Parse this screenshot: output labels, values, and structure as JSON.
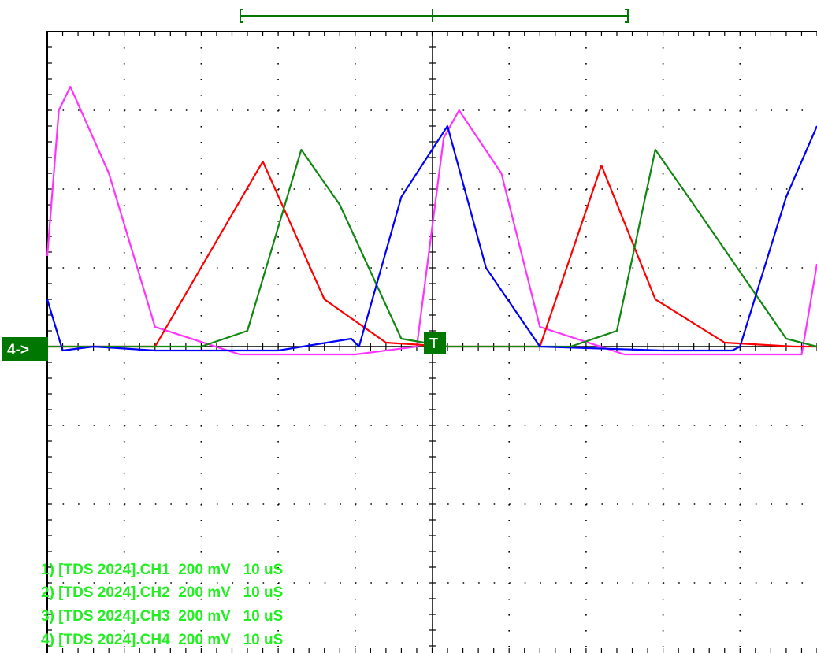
{
  "ground_marker": {
    "label": "4->"
  },
  "trigger_marker": {
    "label": "T"
  },
  "colors": {
    "background": "#ffffff",
    "grid": "#000000",
    "legend_text": "#22ee22",
    "marker_fill": "#007700",
    "marker_text": "#ffffff",
    "ch1": "#ff33ff",
    "ch2": "#ff0000",
    "ch3": "#118811",
    "ch4": "#0000ff"
  },
  "legend": [
    "1) [TDS 2024].CH1  200 mV   10 uS",
    "2) [TDS 2024].CH2  200 mV   10 uS",
    "3) [TDS 2024].CH3  200 mV   10 uS",
    "4) [TDS 2024].CH4  200 mV   10 uS"
  ],
  "chart_data": {
    "type": "line",
    "title": "",
    "xlabel": "",
    "ylabel": "",
    "x_unit": "us",
    "y_unit": "V",
    "xlim": [
      0,
      100
    ],
    "ylim": [
      -0.8,
      0.8
    ],
    "grid": true,
    "legend_position": "bottom-left",
    "series": [
      {
        "name": "[TDS 2024].CH1",
        "color": "#ff33ff",
        "x": [
          0,
          1.5,
          3,
          8,
          14,
          25,
          30,
          40,
          48,
          51.5,
          53.5,
          59,
          64,
          75,
          80,
          90,
          98,
          100
        ],
        "y": [
          0.23,
          0.6,
          0.66,
          0.44,
          0.05,
          -0.02,
          -0.02,
          -0.02,
          0.0,
          0.53,
          0.6,
          0.44,
          0.05,
          -0.02,
          -0.02,
          -0.02,
          -0.02,
          0.21
        ]
      },
      {
        "name": "[TDS 2024].CH2",
        "color": "#ff0000",
        "x": [
          0,
          14,
          28,
          36,
          44,
          52,
          58,
          64,
          72,
          79,
          88,
          97,
          100
        ],
        "y": [
          0.0,
          0.0,
          0.47,
          0.12,
          0.01,
          0.0,
          0.0,
          0.0,
          0.46,
          0.12,
          0.01,
          0.0,
          0.0
        ]
      },
      {
        "name": "[TDS 2024].CH3",
        "color": "#118811",
        "x": [
          0,
          20,
          26,
          33,
          38,
          46,
          52,
          68,
          74,
          79,
          84,
          96,
          100
        ],
        "y": [
          0.0,
          0.0,
          0.04,
          0.5,
          0.36,
          0.02,
          0.0,
          0.0,
          0.04,
          0.5,
          0.36,
          0.02,
          0.0
        ]
      },
      {
        "name": "[TDS 2024].CH4",
        "color": "#0000ff",
        "x": [
          0,
          2,
          6,
          14,
          30,
          39.5,
          40.5,
          46,
          52,
          57,
          64,
          80,
          89,
          90,
          96,
          100
        ],
        "y": [
          0.12,
          -0.01,
          0.0,
          -0.01,
          -0.01,
          0.02,
          0.0,
          0.38,
          0.56,
          0.2,
          0.0,
          -0.01,
          -0.01,
          0.0,
          0.38,
          0.56
        ]
      }
    ]
  }
}
